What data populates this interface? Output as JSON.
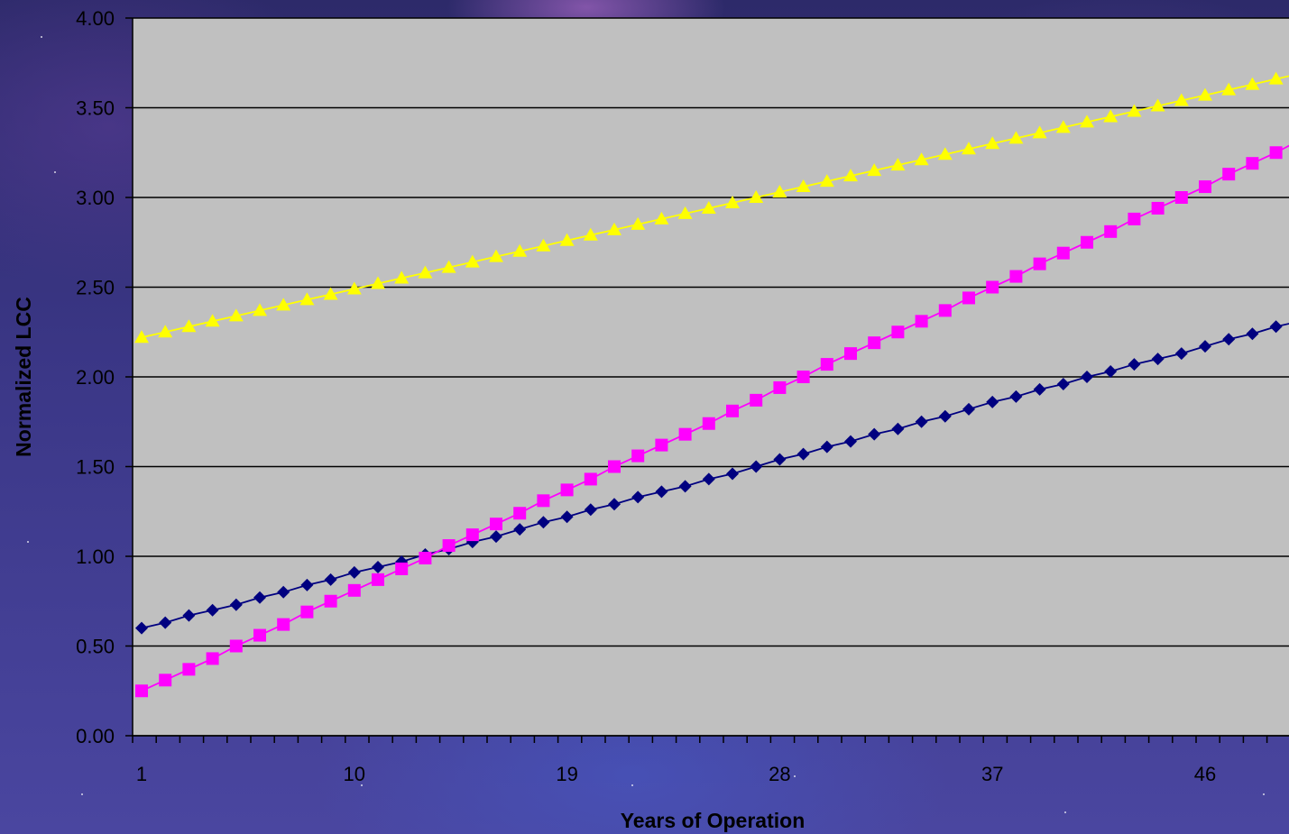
{
  "chart_data": {
    "type": "line",
    "xlabel": "Years of Operation",
    "ylabel": "Normalized LCC",
    "ylim": [
      0,
      4
    ],
    "y_ticks": [
      "0.00",
      "0.50",
      "1.00",
      "1.50",
      "2.00",
      "2.50",
      "3.00",
      "3.50",
      "4.00"
    ],
    "x_tick_labels": [
      "1",
      "10",
      "19",
      "28",
      "37",
      "46"
    ],
    "x": [
      1,
      2,
      3,
      4,
      5,
      6,
      7,
      8,
      9,
      10,
      11,
      12,
      13,
      14,
      15,
      16,
      17,
      18,
      19,
      20,
      21,
      22,
      23,
      24,
      25,
      26,
      27,
      28,
      29,
      30,
      31,
      32,
      33,
      34,
      35,
      36,
      37,
      38,
      39,
      40,
      41,
      42,
      43,
      44,
      45,
      46,
      47,
      48,
      49,
      50
    ],
    "grid": "horizontal",
    "background_color": "#c0c0c0",
    "series": [
      {
        "marker": "diamond",
        "color": "#000080",
        "values": [
          0.6,
          0.63,
          0.67,
          0.7,
          0.73,
          0.77,
          0.8,
          0.84,
          0.87,
          0.91,
          0.94,
          0.97,
          1.01,
          1.04,
          1.08,
          1.11,
          1.15,
          1.19,
          1.22,
          1.26,
          1.29,
          1.33,
          1.36,
          1.39,
          1.43,
          1.46,
          1.5,
          1.54,
          1.57,
          1.61,
          1.64,
          1.68,
          1.71,
          1.75,
          1.78,
          1.82,
          1.86,
          1.89,
          1.93,
          1.96,
          2.0,
          2.03,
          2.07,
          2.1,
          2.13,
          2.17,
          2.21,
          2.24,
          2.28,
          2.31
        ]
      },
      {
        "marker": "square",
        "color": "#ff00ff",
        "values": [
          0.25,
          0.31,
          0.37,
          0.43,
          0.5,
          0.56,
          0.62,
          0.69,
          0.75,
          0.81,
          0.87,
          0.93,
          0.99,
          1.06,
          1.12,
          1.18,
          1.24,
          1.31,
          1.37,
          1.43,
          1.5,
          1.56,
          1.62,
          1.68,
          1.74,
          1.81,
          1.87,
          1.94,
          2.0,
          2.07,
          2.13,
          2.19,
          2.25,
          2.31,
          2.37,
          2.44,
          2.5,
          2.56,
          2.63,
          2.69,
          2.75,
          2.81,
          2.88,
          2.94,
          3.0,
          3.06,
          3.13,
          3.19,
          3.25,
          3.32
        ]
      },
      {
        "marker": "triangle",
        "color": "#ffff00",
        "values": [
          2.22,
          2.25,
          2.28,
          2.31,
          2.34,
          2.37,
          2.4,
          2.43,
          2.46,
          2.49,
          2.52,
          2.55,
          2.58,
          2.61,
          2.64,
          2.67,
          2.7,
          2.73,
          2.76,
          2.79,
          2.82,
          2.85,
          2.88,
          2.91,
          2.94,
          2.97,
          3.0,
          3.03,
          3.06,
          3.09,
          3.12,
          3.15,
          3.18,
          3.21,
          3.24,
          3.27,
          3.3,
          3.33,
          3.36,
          3.39,
          3.42,
          3.45,
          3.48,
          3.51,
          3.54,
          3.57,
          3.6,
          3.63,
          3.66,
          3.69
        ]
      }
    ]
  }
}
